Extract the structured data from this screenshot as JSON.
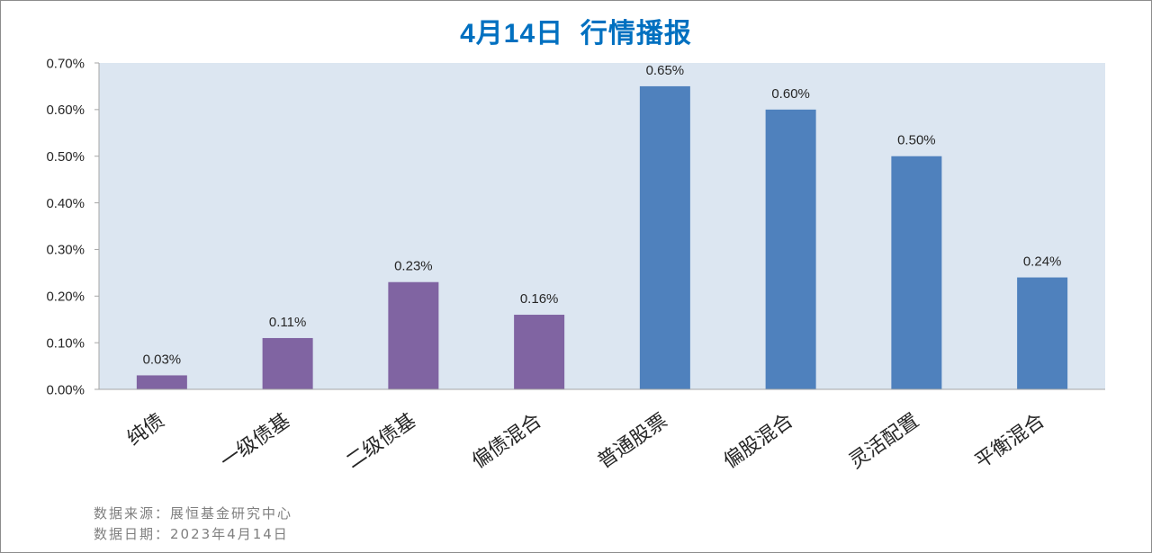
{
  "chart_data": {
    "type": "bar",
    "title": "4月14日  行情播报",
    "categories": [
      "纯债",
      "一级债基",
      "二级债基",
      "偏债混合",
      "普通股票",
      "偏股混合",
      "灵活配置",
      "平衡混合"
    ],
    "values": [
      0.03,
      0.11,
      0.23,
      0.16,
      0.65,
      0.6,
      0.5,
      0.24
    ],
    "data_labels": [
      "0.03%",
      "0.11%",
      "0.23%",
      "0.16%",
      "0.65%",
      "0.60%",
      "0.50%",
      "0.24%"
    ],
    "ylim": [
      0,
      0.7
    ],
    "yticks": [
      0,
      0.1,
      0.2,
      0.3,
      0.4,
      0.5,
      0.6,
      0.7
    ],
    "ytick_labels": [
      "0.00%",
      "0.10%",
      "0.20%",
      "0.30%",
      "0.40%",
      "0.50%",
      "0.60%",
      "0.70%"
    ],
    "grid": false,
    "bar_colors": [
      "#8064a2",
      "#8064a2",
      "#8064a2",
      "#8064a2",
      "#4f81bd",
      "#4f81bd",
      "#4f81bd",
      "#4f81bd"
    ],
    "plot_background": "#dce6f1",
    "axis_color": "#a6a6a6"
  },
  "footer": {
    "source": "数据来源：展恒基金研究中心",
    "date": "数据日期：2023年4月14日"
  },
  "colors": {
    "title": "#0070c0",
    "footer_text": "#7f7f7f"
  }
}
